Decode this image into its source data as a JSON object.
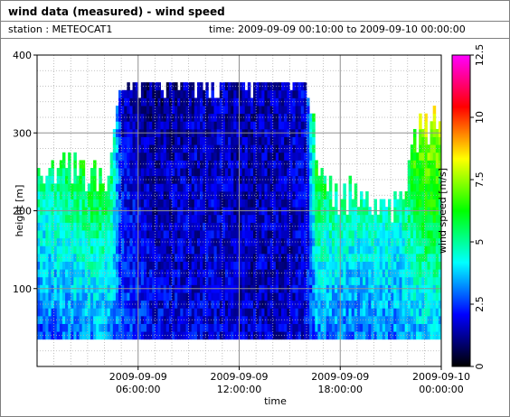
{
  "header": {
    "title": "wind data (measured) - wind speed",
    "station": "station : METEOCAT1",
    "time_range": "time: 2009-09-09 00:10:00 to 2009-09-10 00:00:00"
  },
  "chart_data": {
    "type": "heatmap",
    "title": "wind data (measured) - wind speed",
    "xlabel": "time",
    "ylabel": "height [m]",
    "colorbar_label": "wind speed [m/s]",
    "x_range_hours": [
      0,
      24
    ],
    "ylim": [
      0,
      400
    ],
    "x_ticks": [
      {
        "hour": 6,
        "line1": "2009-09-09",
        "line2": "06:00:00"
      },
      {
        "hour": 12,
        "line1": "2009-09-09",
        "line2": "12:00:00"
      },
      {
        "hour": 18,
        "line1": "2009-09-09",
        "line2": "18:00:00"
      },
      {
        "hour": 24,
        "line1": "2009-09-10",
        "line2": "00:00:00"
      }
    ],
    "y_ticks": [
      "100",
      "200",
      "300",
      "400"
    ],
    "colorbar_range": [
      0,
      12.5
    ],
    "colorbar_ticks": [
      "0",
      "2.5",
      "5",
      "7.5",
      "10",
      "12.5"
    ],
    "colormap": [
      "#000000",
      "#0000ff",
      "#00ffff",
      "#00ff00",
      "#ffff00",
      "#ff0000",
      "#ff00ff"
    ],
    "grid": true,
    "data_height_range_m": [
      35,
      365
    ],
    "height_step_m": 10,
    "time_step_min": 10,
    "profile_hours": [
      0,
      1.6,
      2.8,
      3.6,
      4.3,
      5.0,
      6.0,
      7.0,
      9.0,
      10.5,
      12.0,
      13.0,
      14.5,
      16.0,
      16.6,
      17.0,
      18.0,
      19.0,
      20.5,
      21.5,
      22.5,
      23.2,
      24.0
    ],
    "profile_low_speed": [
      2.6,
      3.0,
      3.2,
      3.4,
      3.2,
      2.8,
      2.4,
      2.0,
      1.8,
      1.8,
      1.6,
      1.6,
      1.5,
      1.8,
      3.2,
      3.0,
      3.0,
      3.0,
      3.0,
      3.2,
      3.5,
      3.6,
      3.4
    ],
    "profile_high_speed": [
      6.5,
      6.8,
      7.2,
      7.6,
      7.4,
      1.5,
      1.2,
      1.0,
      1.4,
      1.6,
      1.4,
      1.4,
      1.5,
      1.8,
      7.6,
      7.2,
      6.8,
      6.6,
      7.0,
      6.0,
      8.0,
      8.8,
      8.4
    ],
    "profile_max_height_m": [
      240,
      250,
      240,
      235,
      240,
      365,
      365,
      365,
      365,
      365,
      365,
      365,
      365,
      365,
      260,
      230,
      210,
      215,
      205,
      200,
      290,
      300,
      310
    ]
  }
}
